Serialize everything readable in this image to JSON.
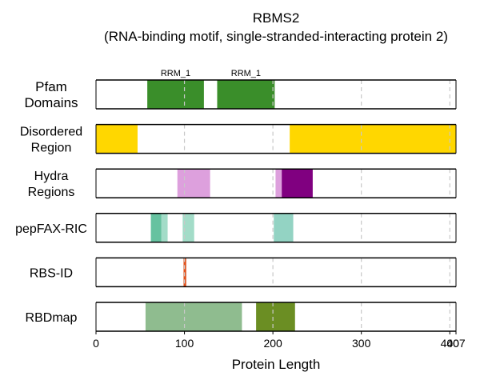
{
  "chart_data": {
    "type": "bar",
    "title": "RBMS2",
    "subtitle": "(RNA-binding motif, single-stranded-interacting protein 2)",
    "xlabel": "Protein Length",
    "protein_length": 407,
    "xlim": [
      0,
      407
    ],
    "xticks": [
      0,
      100,
      200,
      300,
      400,
      407
    ],
    "xtick_labels": [
      "0",
      "100",
      "200",
      "300",
      "400",
      "407"
    ],
    "grid_x": [
      100,
      200,
      300,
      400
    ],
    "tracks": [
      {
        "label_lines": [
          "Pfam",
          "Domains"
        ],
        "segments": [
          {
            "start": 58,
            "end": 122,
            "color": "#3a8e2a",
            "name": "RRM_1"
          },
          {
            "start": 137,
            "end": 202,
            "color": "#3a8e2a",
            "name": "RRM_1"
          }
        ]
      },
      {
        "label_lines": [
          "Disordered",
          "Region"
        ],
        "segments": [
          {
            "start": 0,
            "end": 47,
            "color": "#ffd700"
          },
          {
            "start": 219,
            "end": 407,
            "color": "#ffd700"
          }
        ]
      },
      {
        "label_lines": [
          "Hydra",
          "Regions"
        ],
        "segments": [
          {
            "start": 92,
            "end": 129,
            "color": "#dda0dd"
          },
          {
            "start": 203,
            "end": 210,
            "color": "#dda0dd"
          },
          {
            "start": 210,
            "end": 245,
            "color": "#800080"
          }
        ]
      },
      {
        "label_lines": [
          "pepFAX-RIC"
        ],
        "segments": [
          {
            "start": 62,
            "end": 74,
            "color": "#66c2a0"
          },
          {
            "start": 74,
            "end": 81,
            "color": "#a3dcc8"
          },
          {
            "start": 98,
            "end": 111,
            "color": "#a3dcc8"
          },
          {
            "start": 201,
            "end": 223,
            "color": "#93d3c3"
          }
        ]
      },
      {
        "label_lines": [
          "RBS-ID"
        ],
        "segments": [
          {
            "start": 99,
            "end": 102,
            "color": "#e2521d"
          }
        ]
      },
      {
        "label_lines": [
          "RBDmap"
        ],
        "segments": [
          {
            "start": 56,
            "end": 165,
            "color": "#8fbc8f"
          },
          {
            "start": 181,
            "end": 225,
            "color": "#6b8e23"
          }
        ]
      }
    ]
  }
}
